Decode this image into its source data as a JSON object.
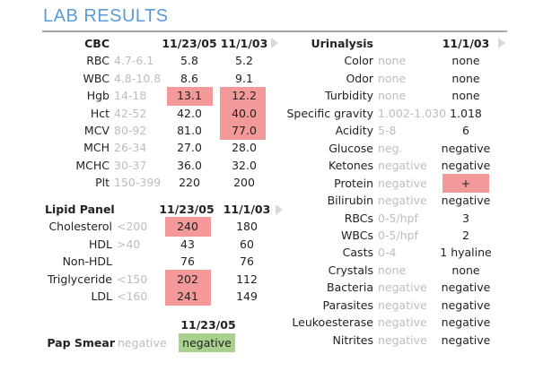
{
  "title": "LAB RESULTS",
  "colors": {
    "accent": "#5b9bd5",
    "abnormal": "#f4999a",
    "normal_highlight": "#a9d18e",
    "range_text": "#bdbdbd"
  },
  "cbc": {
    "header": "CBC",
    "dates": [
      "11/23/05",
      "11/1/03"
    ],
    "rows": [
      {
        "name": "RBC",
        "range": "4.7-6.1",
        "values": [
          "5.8",
          "5.2"
        ],
        "flags": [
          null,
          null
        ]
      },
      {
        "name": "WBC",
        "range": "4.8-10.8",
        "values": [
          "8.6",
          "9.1"
        ],
        "flags": [
          null,
          null
        ]
      },
      {
        "name": "Hgb",
        "range": "14-18",
        "values": [
          "13.1",
          "12.2"
        ],
        "flags": [
          "abnormal",
          "abnormal"
        ]
      },
      {
        "name": "Hct",
        "range": "42-52",
        "values": [
          "42.0",
          "40.0"
        ],
        "flags": [
          null,
          "abnormal"
        ]
      },
      {
        "name": "MCV",
        "range": "80-92",
        "values": [
          "81.0",
          "77.0"
        ],
        "flags": [
          null,
          "abnormal"
        ]
      },
      {
        "name": "MCH",
        "range": "26-34",
        "values": [
          "27.0",
          "28.0"
        ],
        "flags": [
          null,
          null
        ]
      },
      {
        "name": "MCHC",
        "range": "30-37",
        "values": [
          "36.0",
          "32.0"
        ],
        "flags": [
          null,
          null
        ]
      },
      {
        "name": "Plt",
        "range": "150-399",
        "values": [
          "220",
          "200"
        ],
        "flags": [
          null,
          null
        ]
      }
    ]
  },
  "lipid": {
    "header": "Lipid Panel",
    "dates": [
      "11/23/05",
      "11/1/03"
    ],
    "rows": [
      {
        "name": "Cholesterol",
        "range": "<200",
        "values": [
          "240",
          "180"
        ],
        "flags": [
          "abnormal",
          null
        ]
      },
      {
        "name": "HDL",
        "range": ">40",
        "values": [
          "43",
          "60"
        ],
        "flags": [
          null,
          null
        ]
      },
      {
        "name": "Non-HDL",
        "range": "",
        "values": [
          "76",
          "76"
        ],
        "flags": [
          null,
          null
        ]
      },
      {
        "name": "Triglyceride",
        "range": "<150",
        "values": [
          "202",
          "112"
        ],
        "flags": [
          "abnormal",
          null
        ]
      },
      {
        "name": "LDL",
        "range": "<160",
        "values": [
          "241",
          "149"
        ],
        "flags": [
          "abnormal",
          null
        ]
      }
    ]
  },
  "pap": {
    "date": "11/23/05",
    "name": "Pap Smear",
    "range": "negative",
    "value": "negative",
    "flag": "normal"
  },
  "urinalysis": {
    "header": "Urinalysis",
    "date": "11/1/03",
    "rows": [
      {
        "name": "Color",
        "range": "none",
        "value": "none",
        "flag": null
      },
      {
        "name": "Odor",
        "range": "none",
        "value": "none",
        "flag": null
      },
      {
        "name": "Turbidity",
        "range": "none",
        "value": "none",
        "flag": null
      },
      {
        "name": "Specific gravity",
        "range": "1.002-1.030",
        "value": "1.018",
        "flag": null
      },
      {
        "name": "Acidity",
        "range": "5-8",
        "value": "6",
        "flag": null
      },
      {
        "name": "Glucose",
        "range": "neg.",
        "value": "negative",
        "flag": null
      },
      {
        "name": "Ketones",
        "range": "negative",
        "value": "negative",
        "flag": null
      },
      {
        "name": "Protein",
        "range": "negative",
        "value": "+",
        "flag": "abnormal"
      },
      {
        "name": "Bilirubin",
        "range": "negative",
        "value": "negative",
        "flag": null
      },
      {
        "name": "RBCs",
        "range": "0-5/hpf",
        "value": "3",
        "flag": null
      },
      {
        "name": "WBCs",
        "range": "0-5/hpf",
        "value": "2",
        "flag": null
      },
      {
        "name": "Casts",
        "range": "0-4",
        "value": "1 hyaline",
        "flag": null
      },
      {
        "name": "Crystals",
        "range": "none",
        "value": "none",
        "flag": null
      },
      {
        "name": "Bacteria",
        "range": "negative",
        "value": "negative",
        "flag": null
      },
      {
        "name": "Parasites",
        "range": "negative",
        "value": "negative",
        "flag": null
      },
      {
        "name": "Leukoesterase",
        "range": "negative",
        "value": "negative",
        "flag": null
      },
      {
        "name": "Nitrites",
        "range": "negative",
        "value": "negative",
        "flag": null
      }
    ]
  }
}
